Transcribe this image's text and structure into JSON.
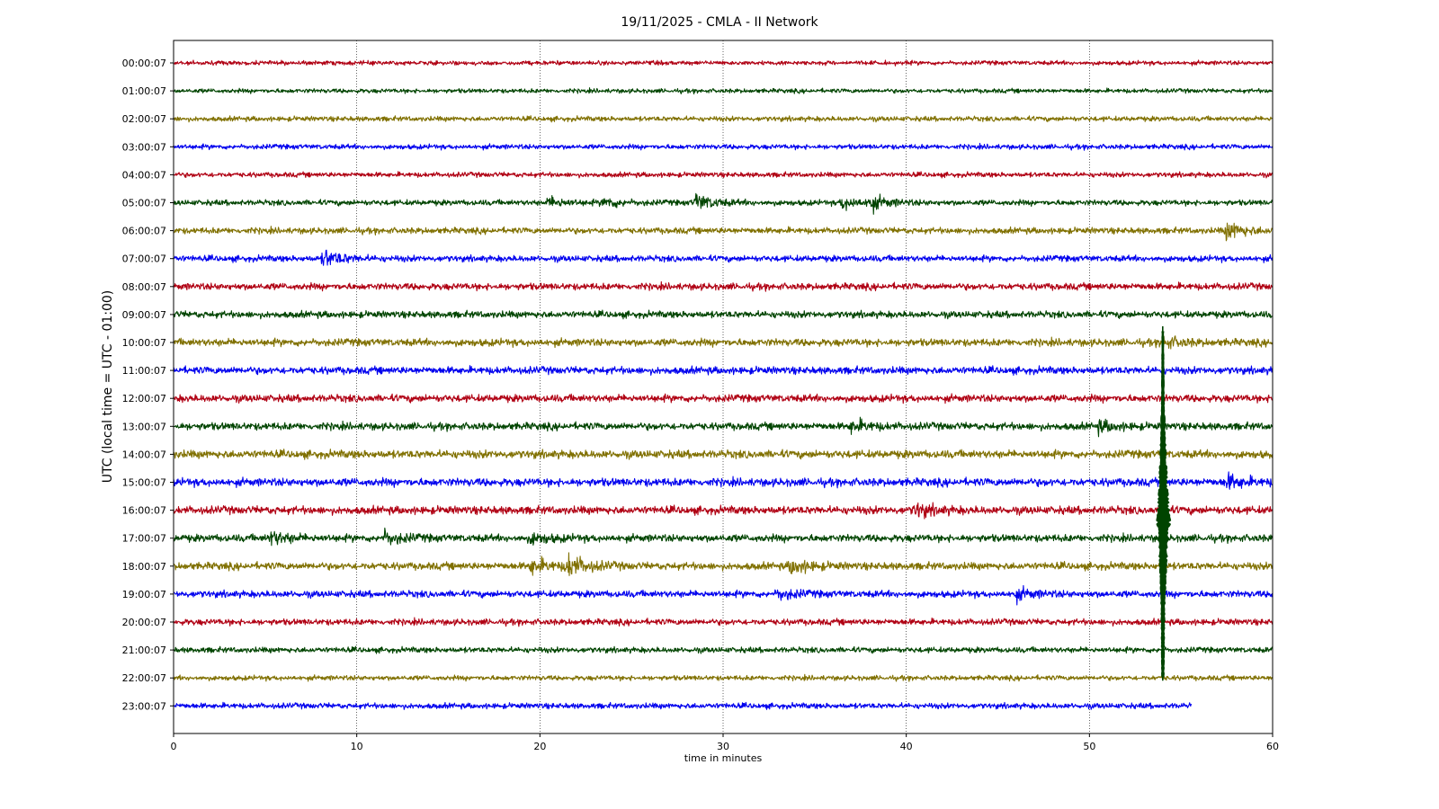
{
  "chart_data": {
    "type": "line",
    "title": "19/11/2025 - CMLA - II Network",
    "xlabel": "time in minutes",
    "ylabel": "UTC (local time = UTC - 01:00)",
    "xlim": [
      0,
      60
    ],
    "x_ticks": [
      "0",
      "10",
      "20",
      "30",
      "40",
      "50",
      "60"
    ],
    "grid": "vertical dotted lines at x ticks",
    "row_colors": [
      "#b00013",
      "#004400",
      "#807000",
      "#0000ee"
    ],
    "rows": [
      {
        "label": "00:00:07",
        "end_minute": 60,
        "noise": 0.35,
        "events": []
      },
      {
        "label": "01:00:07",
        "end_minute": 60,
        "noise": 0.35,
        "events": []
      },
      {
        "label": "02:00:07",
        "end_minute": 60,
        "noise": 0.4,
        "events": []
      },
      {
        "label": "03:00:07",
        "end_minute": 60,
        "noise": 0.4,
        "events": []
      },
      {
        "label": "04:00:07",
        "end_minute": 60,
        "noise": 0.4,
        "events": []
      },
      {
        "label": "05:00:07",
        "end_minute": 60,
        "noise": 0.45,
        "events": [
          {
            "minute": 20.5,
            "amp": 0.8
          },
          {
            "minute": 23.5,
            "amp": 0.8
          },
          {
            "minute": 28.5,
            "amp": 1.3
          },
          {
            "minute": 36.5,
            "amp": 1.0
          },
          {
            "minute": 38.0,
            "amp": 1.0
          }
        ]
      },
      {
        "label": "06:00:07",
        "end_minute": 60,
        "noise": 0.5,
        "events": [
          {
            "minute": 57.5,
            "amp": 1.5
          }
        ]
      },
      {
        "label": "07:00:07",
        "end_minute": 60,
        "noise": 0.5,
        "events": [
          {
            "minute": 8.2,
            "amp": 1.4
          }
        ]
      },
      {
        "label": "08:00:07",
        "end_minute": 60,
        "noise": 0.55,
        "events": []
      },
      {
        "label": "09:00:07",
        "end_minute": 60,
        "noise": 0.55,
        "events": []
      },
      {
        "label": "10:00:07",
        "end_minute": 60,
        "noise": 0.6,
        "events": [
          {
            "minute": 54.0,
            "amp": 0.9
          }
        ]
      },
      {
        "label": "11:00:07",
        "end_minute": 60,
        "noise": 0.6,
        "events": []
      },
      {
        "label": "12:00:07",
        "end_minute": 60,
        "noise": 0.6,
        "events": []
      },
      {
        "label": "13:00:07",
        "end_minute": 60,
        "noise": 0.6,
        "events": [
          {
            "minute": 37.0,
            "amp": 0.9
          },
          {
            "minute": 50.5,
            "amp": 0.8
          }
        ]
      },
      {
        "label": "14:00:07",
        "end_minute": 60,
        "noise": 0.65,
        "events": []
      },
      {
        "label": "15:00:07",
        "end_minute": 60,
        "noise": 0.65,
        "events": [
          {
            "minute": 57.5,
            "amp": 1.1
          }
        ]
      },
      {
        "label": "16:00:07",
        "end_minute": 60,
        "noise": 0.65,
        "events": [
          {
            "minute": 40.5,
            "amp": 1.0
          }
        ]
      },
      {
        "label": "17:00:07",
        "end_minute": 60,
        "noise": 0.6,
        "events": [
          {
            "minute": 5.3,
            "amp": 1.0
          },
          {
            "minute": 11.5,
            "amp": 1.0
          },
          {
            "minute": 19.5,
            "amp": 0.8
          }
        ]
      },
      {
        "label": "18:00:07",
        "end_minute": 60,
        "noise": 0.6,
        "events": [
          {
            "minute": 19.5,
            "amp": 1.2
          },
          {
            "minute": 21.5,
            "amp": 1.8
          },
          {
            "minute": 33.7,
            "amp": 1.2
          }
        ]
      },
      {
        "label": "19:00:07",
        "end_minute": 60,
        "noise": 0.55,
        "events": [
          {
            "minute": 33.0,
            "amp": 0.8
          },
          {
            "minute": 46.0,
            "amp": 0.8
          }
        ]
      },
      {
        "label": "20:00:07",
        "end_minute": 60,
        "noise": 0.5,
        "events": []
      },
      {
        "label": "21:00:07",
        "end_minute": 60,
        "noise": 0.45,
        "events": []
      },
      {
        "label": "22:00:07",
        "end_minute": 60,
        "noise": 0.4,
        "events": []
      },
      {
        "label": "23:00:07",
        "end_minute": 55.6,
        "noise": 0.45,
        "events": []
      }
    ],
    "large_event": {
      "minute": 54.0,
      "start_row": 10,
      "end_row": 22,
      "peak_row": 16.5,
      "color": "#004400"
    }
  }
}
